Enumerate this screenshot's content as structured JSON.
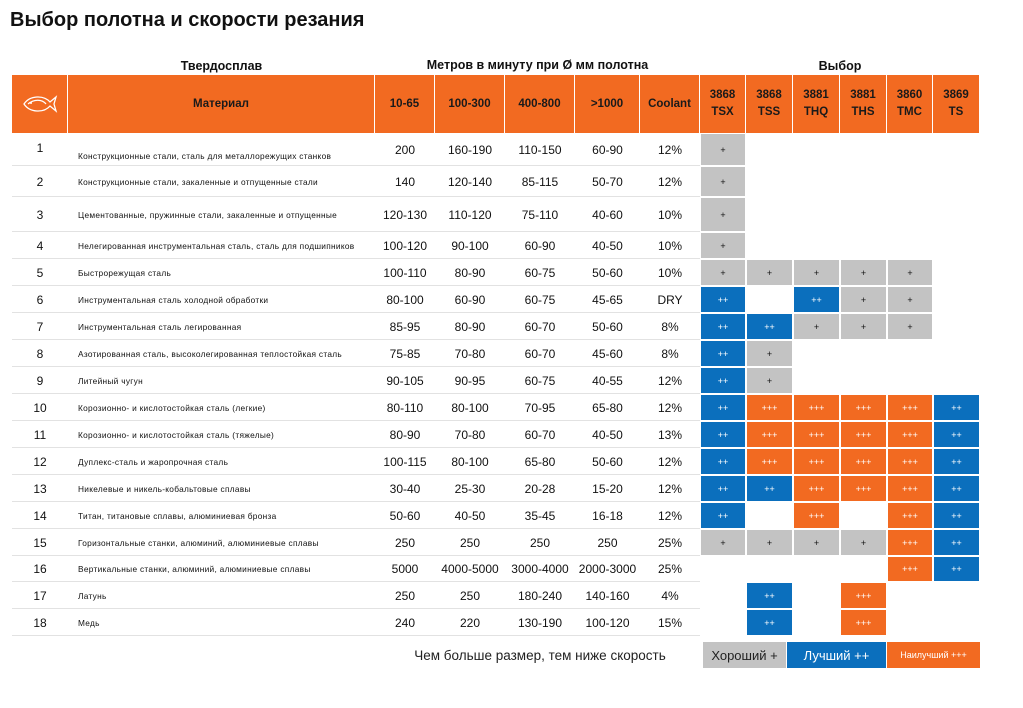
{
  "title": "Выбор полотна и скорости резания",
  "header": {
    "group_material": "Твердосплав",
    "group_speed": "Метров в минуту при Ø мм полотна",
    "group_selection": "Выбор",
    "material": "Материал",
    "speed_columns": [
      "10-65",
      "100-300",
      "400-800",
      ">1000"
    ],
    "coolant": "Coolant",
    "selection_columns": [
      {
        "code": "3868",
        "name": "TSX"
      },
      {
        "code": "3868",
        "name": "TSS"
      },
      {
        "code": "3881",
        "name": "THQ"
      },
      {
        "code": "3881",
        "name": "THS"
      },
      {
        "code": "3860",
        "name": "TMC"
      },
      {
        "code": "3869",
        "name": "TS"
      }
    ]
  },
  "table": {
    "rows": [
      {
        "num": 1,
        "material": "Конструкционные стали, сталь для металлорежущих станков",
        "speeds": [
          "200",
          "160-190",
          "110-150",
          "60-90"
        ],
        "coolant": "12%",
        "selection": [
          "+",
          null,
          null,
          null,
          null,
          null
        ]
      },
      {
        "num": 2,
        "material": "Конструкционные стали, закаленные и отпущенные стали",
        "speeds": [
          "140",
          "120-140",
          "85-115",
          "50-70"
        ],
        "coolant": "12%",
        "selection": [
          "+",
          null,
          null,
          null,
          null,
          null
        ]
      },
      {
        "num": 3,
        "material": "Цементованные, пружинные стали, закаленные и отпущенные",
        "speeds": [
          "120-130",
          "110-120",
          "75-110",
          "40-60"
        ],
        "coolant": "10%",
        "selection": [
          "+",
          null,
          null,
          null,
          null,
          null
        ]
      },
      {
        "num": 4,
        "material": "Нелегированная инструментальная сталь, сталь для подшипников",
        "speeds": [
          "100-120",
          "90-100",
          "60-90",
          "40-50"
        ],
        "coolant": "10%",
        "selection": [
          "+",
          null,
          null,
          null,
          null,
          null
        ]
      },
      {
        "num": 5,
        "material": "Быстрорежущая сталь",
        "speeds": [
          "100-110",
          "80-90",
          "60-75",
          "50-60"
        ],
        "coolant": "10%",
        "selection": [
          "+",
          "+",
          "+",
          "+",
          "+",
          null
        ]
      },
      {
        "num": 6,
        "material": "Инструментальная сталь холодной обработки",
        "speeds": [
          "80-100",
          "60-90",
          "60-75",
          "45-65"
        ],
        "coolant": "DRY",
        "selection": [
          "++",
          null,
          "++",
          "+",
          "+",
          null
        ]
      },
      {
        "num": 7,
        "material": "Инструментальная сталь легированная",
        "speeds": [
          "85-95",
          "80-90",
          "60-70",
          "50-60"
        ],
        "coolant": "8%",
        "selection": [
          "++",
          "++",
          "+",
          "+",
          "+",
          null
        ]
      },
      {
        "num": 8,
        "material": "Азотированная сталь, высоколегированная теплостойкая сталь",
        "speeds": [
          "75-85",
          "70-80",
          "60-70",
          "45-60"
        ],
        "coolant": "8%",
        "selection": [
          "++",
          "+",
          null,
          null,
          null,
          null
        ]
      },
      {
        "num": 9,
        "material": "Литейный чугун",
        "speeds": [
          "90-105",
          "90-95",
          "60-75",
          "40-55"
        ],
        "coolant": "12%",
        "selection": [
          "++",
          "+",
          null,
          null,
          null,
          null
        ]
      },
      {
        "num": 10,
        "material": "Корозионно- и кислотостойкая сталь (легкие)",
        "speeds": [
          "80-110",
          "80-100",
          "70-95",
          "65-80"
        ],
        "coolant": "12%",
        "selection": [
          "++",
          "+++",
          "+++",
          "+++",
          "+++",
          "++"
        ]
      },
      {
        "num": 11,
        "material": "Корозионно- и кислотостойкая сталь (тяжелые)",
        "speeds": [
          "80-90",
          "70-80",
          "60-70",
          "40-50"
        ],
        "coolant": "13%",
        "selection": [
          "++",
          "+++",
          "+++",
          "+++",
          "+++",
          "++"
        ]
      },
      {
        "num": 12,
        "material": "Дуплекс-сталь и жаропрочная сталь",
        "speeds": [
          "100-115",
          "80-100",
          "65-80",
          "50-60"
        ],
        "coolant": "12%",
        "selection": [
          "++",
          "+++",
          "+++",
          "+++",
          "+++",
          "++"
        ]
      },
      {
        "num": 13,
        "material": "Никелевые и никель-кобальтовые сплавы",
        "speeds": [
          "30-40",
          "25-30",
          "20-28",
          "15-20"
        ],
        "coolant": "12%",
        "selection": [
          "++",
          "++",
          "+++",
          "+++",
          "+++",
          "++"
        ]
      },
      {
        "num": 14,
        "material": "Титан, титановые сплавы, алюминиевая бронза",
        "speeds": [
          "50-60",
          "40-50",
          "35-45",
          "16-18"
        ],
        "coolant": "12%",
        "selection": [
          "++",
          null,
          "+++",
          null,
          "+++",
          "++"
        ]
      },
      {
        "num": 15,
        "material": "Горизонтальные станки, алюминий, алюминиевые сплавы",
        "speeds": [
          "250",
          "250",
          "250",
          "250"
        ],
        "coolant": "25%",
        "selection": [
          "+",
          "+",
          "+",
          "+",
          "+++",
          "++"
        ]
      },
      {
        "num": 16,
        "material": "Вертикальные станки, алюминий, алюминиевые сплавы",
        "speeds": [
          "5000",
          "4000-5000",
          "3000-4000",
          "2000-3000"
        ],
        "coolant": "25%",
        "selection": [
          null,
          null,
          null,
          null,
          "+++",
          "++"
        ]
      },
      {
        "num": 17,
        "material": "Латунь",
        "speeds": [
          "250",
          "250",
          "180-240",
          "140-160"
        ],
        "coolant": "4%",
        "selection": [
          null,
          "++",
          null,
          "+++",
          null,
          null
        ]
      },
      {
        "num": 18,
        "material": "Медь",
        "speeds": [
          "240",
          "220",
          "130-190",
          "100-120"
        ],
        "coolant": "15%",
        "selection": [
          null,
          "++",
          null,
          "+++",
          null,
          null
        ]
      }
    ]
  },
  "footer": {
    "note": "Чем больше размер, тем ниже скорость",
    "legend": [
      {
        "label": "Хороший +",
        "color": "#c3c3c3"
      },
      {
        "label": "Лучший ++",
        "color": "#0b6fbd"
      },
      {
        "label": "Наилучший +++",
        "color": "#f26a21"
      }
    ]
  }
}
